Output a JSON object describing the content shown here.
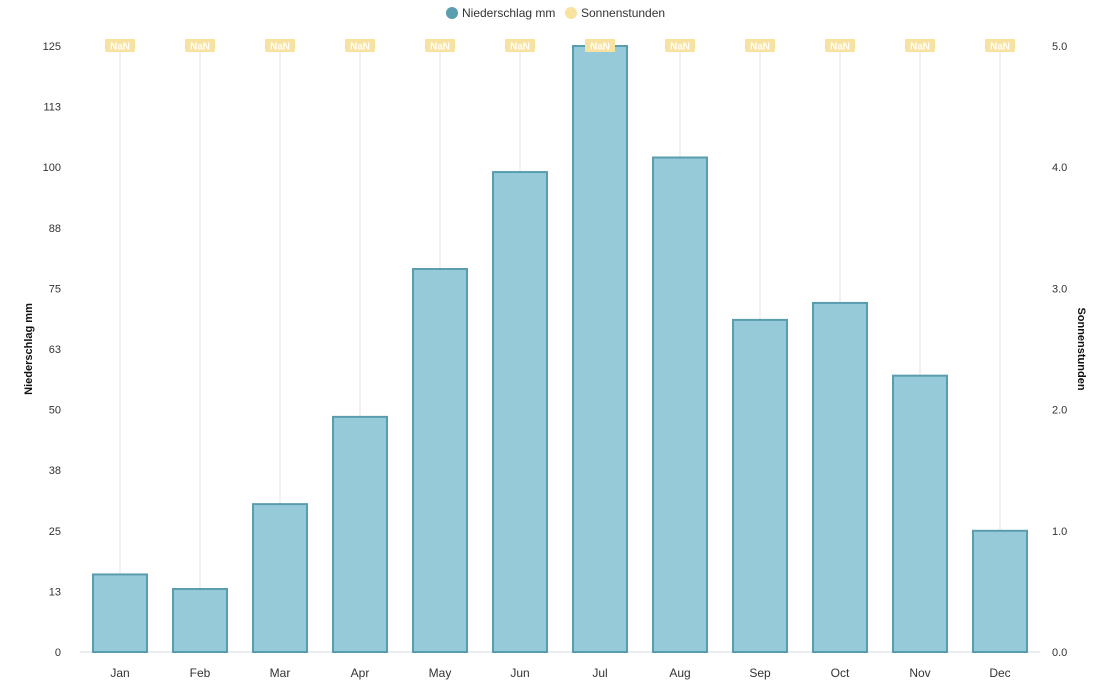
{
  "chart_data": {
    "type": "bar",
    "categories": [
      "Jan",
      "Feb",
      "Mar",
      "Apr",
      "May",
      "Jun",
      "Jul",
      "Aug",
      "Sep",
      "Oct",
      "Nov",
      "Dec"
    ],
    "series": [
      {
        "name": "Niederschlag mm",
        "type": "bar",
        "axis": "left",
        "color": "#96cad9",
        "stroke": "#5a9daf",
        "values": [
          16,
          13,
          30.5,
          48.5,
          79,
          99,
          125,
          102,
          68.5,
          72,
          57,
          25
        ]
      },
      {
        "name": "Sonnenstunden",
        "type": "line",
        "axis": "right",
        "color": "#f7e2a0",
        "point_labels": [
          "NaN",
          "NaN",
          "NaN",
          "NaN",
          "NaN",
          "NaN",
          "NaN",
          "NaN",
          "NaN",
          "NaN",
          "NaN",
          "NaN"
        ]
      }
    ],
    "y_left": {
      "label": "Niederschlag mm",
      "ylim": [
        0,
        125
      ],
      "ticks": [
        "0",
        "13",
        "25",
        "38",
        "50",
        "63",
        "75",
        "88",
        "100",
        "113",
        "125"
      ]
    },
    "y_right": {
      "label": "Sonnenstunden",
      "ylim": [
        0,
        5
      ],
      "ticks": [
        "0.0",
        "1.0",
        "2.0",
        "3.0",
        "4.0",
        "5.0"
      ]
    },
    "grid": {
      "vertical": true,
      "horizontal": false
    },
    "legend_position": "top-center"
  }
}
